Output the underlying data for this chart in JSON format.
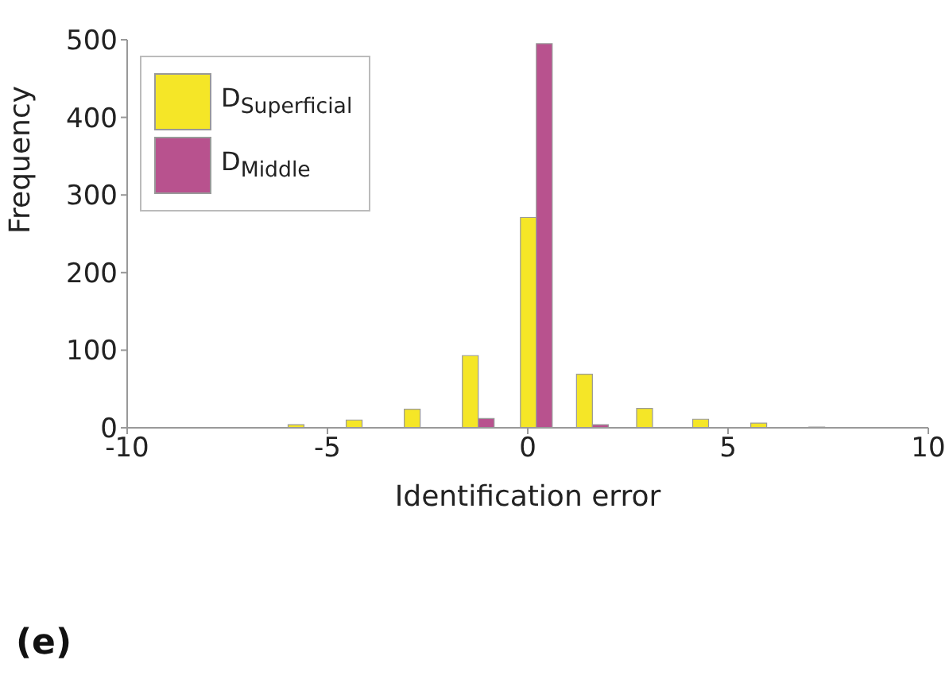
{
  "chart_data": {
    "type": "bar",
    "xlabel": "Identification error",
    "ylabel": "Frequency",
    "x": [
      -5.6,
      -4.15,
      -2.7,
      -1.25,
      0.2,
      1.6,
      3.1,
      4.5,
      5.95,
      7.4
    ],
    "series": [
      {
        "name": "D$_{Superficial}$",
        "color": "#f5e627",
        "values": [
          4,
          10,
          24,
          93,
          271,
          69,
          25,
          11,
          6,
          1
        ]
      },
      {
        "name": "D$_{Middle}$",
        "color": "#b8528e",
        "values": [
          0,
          0,
          0,
          12,
          495,
          4,
          0,
          0,
          0,
          0
        ]
      }
    ],
    "xlim": [
      -10,
      10
    ],
    "xticks": [
      -10,
      -5,
      0,
      5,
      10
    ],
    "ylim": [
      0,
      500
    ],
    "yticks": [
      0,
      100,
      200,
      300,
      400,
      500
    ],
    "legend": "top left",
    "annotations": [
      "(e)"
    ]
  }
}
